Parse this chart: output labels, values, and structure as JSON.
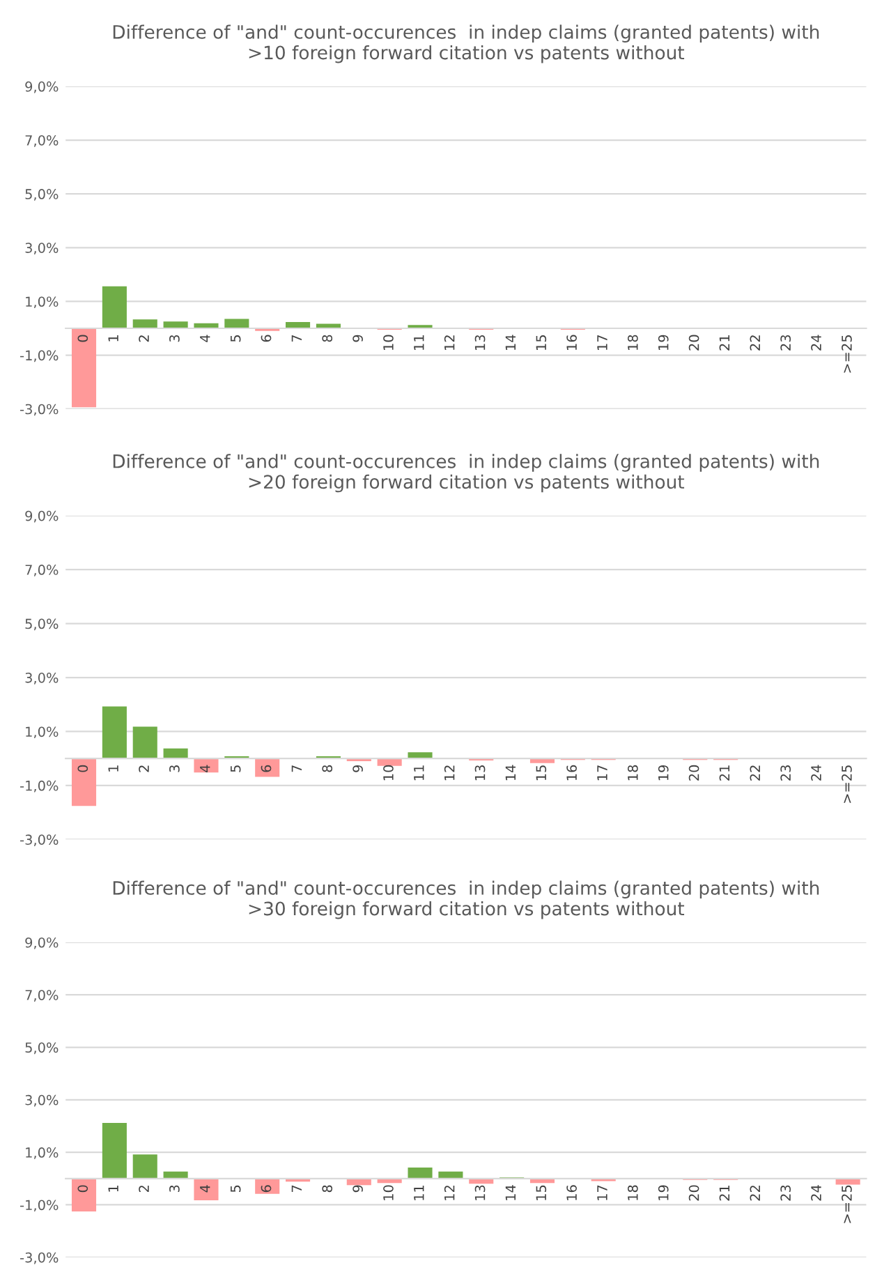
{
  "chart_data": [
    {
      "type": "bar",
      "title": "Difference of \"and\" count-occurences  in indep claims (granted patents) with\n>10 foreign forward citation vs patents without",
      "categories": [
        "0",
        "1",
        "2",
        "3",
        "4",
        "5",
        "6",
        "7",
        "8",
        "9",
        "10",
        "11",
        "12",
        "13",
        "14",
        "15",
        "16",
        "17",
        "18",
        "19",
        "20",
        "21",
        "22",
        "23",
        "24",
        ">=25"
      ],
      "values": [
        -2.94,
        1.56,
        0.33,
        0.25,
        0.19,
        0.35,
        -0.1,
        0.23,
        0.17,
        0,
        -0.05,
        0.12,
        0,
        -0.05,
        0,
        0,
        -0.05,
        0,
        0,
        0,
        0,
        0,
        0,
        0,
        0,
        0
      ],
      "colors": [
        "#ff9999",
        "#70ad47",
        "#70ad47",
        "#70ad47",
        "#70ad47",
        "#70ad47",
        "#ff9999",
        "#70ad47",
        "#70ad47",
        "#70ad47",
        "#ff9999",
        "#70ad47",
        "#70ad47",
        "#ff9999",
        "#70ad47",
        "#70ad47",
        "#ff9999",
        "#70ad47",
        "#70ad47",
        "#70ad47",
        "#70ad47",
        "#70ad47",
        "#70ad47",
        "#70ad47",
        "#70ad47",
        "#70ad47"
      ],
      "ylim": [
        -3,
        9
      ],
      "yticks": [
        {
          "value": -3,
          "label": "-3,0%"
        },
        {
          "value": -1,
          "label": "-1,0%"
        },
        {
          "value": 1,
          "label": "1,0%"
        },
        {
          "value": 3,
          "label": "3,0%"
        },
        {
          "value": 5,
          "label": "5,0%"
        },
        {
          "value": 7,
          "label": "7,0%"
        },
        {
          "value": 9,
          "label": "9,0%"
        }
      ],
      "grid": "y"
    },
    {
      "type": "bar",
      "title": "Difference of \"and\" count-occurences  in indep claims (granted patents) with\n>20 foreign forward citation vs patents without",
      "categories": [
        "0",
        "1",
        "2",
        "3",
        "4",
        "5",
        "6",
        "7",
        "8",
        "9",
        "10",
        "11",
        "12",
        "13",
        "14",
        "15",
        "16",
        "17",
        "18",
        "19",
        "20",
        "21",
        "22",
        "23",
        "24",
        ">=25"
      ],
      "values": [
        -1.76,
        1.93,
        1.18,
        0.37,
        -0.52,
        0.08,
        -0.68,
        0,
        0.08,
        -0.1,
        -0.27,
        0.23,
        0,
        -0.07,
        0,
        -0.17,
        -0.05,
        -0.05,
        0,
        0,
        -0.05,
        -0.05,
        0,
        0,
        0,
        0
      ],
      "colors": [
        "#ff9999",
        "#70ad47",
        "#70ad47",
        "#70ad47",
        "#ff9999",
        "#70ad47",
        "#ff9999",
        "#70ad47",
        "#70ad47",
        "#ff9999",
        "#ff9999",
        "#70ad47",
        "#70ad47",
        "#ff9999",
        "#70ad47",
        "#ff9999",
        "#ff9999",
        "#ff9999",
        "#70ad47",
        "#70ad47",
        "#ff9999",
        "#ff9999",
        "#70ad47",
        "#70ad47",
        "#70ad47",
        "#70ad47"
      ],
      "ylim": [
        -3,
        9
      ],
      "yticks": [
        {
          "value": -3,
          "label": "-3,0%"
        },
        {
          "value": -1,
          "label": "-1,0%"
        },
        {
          "value": 1,
          "label": "1,0%"
        },
        {
          "value": 3,
          "label": "3,0%"
        },
        {
          "value": 5,
          "label": "5,0%"
        },
        {
          "value": 7,
          "label": "7,0%"
        },
        {
          "value": 9,
          "label": "9,0%"
        }
      ],
      "grid": "y"
    },
    {
      "type": "bar",
      "title": "Difference of \"and\" count-occurences  in indep claims (granted patents) with\n>30 foreign forward citation vs patents without",
      "categories": [
        "0",
        "1",
        "2",
        "3",
        "4",
        "5",
        "6",
        "7",
        "8",
        "9",
        "10",
        "11",
        "12",
        "13",
        "14",
        "15",
        "16",
        "17",
        "18",
        "19",
        "20",
        "21",
        "22",
        "23",
        "24",
        ">=25"
      ],
      "values": [
        -1.25,
        2.12,
        0.92,
        0.27,
        -0.83,
        0,
        -0.58,
        -0.12,
        0,
        -0.25,
        -0.17,
        0.42,
        0.27,
        -0.2,
        0.04,
        -0.17,
        0,
        -0.1,
        0,
        0,
        -0.05,
        -0.05,
        0,
        0,
        0,
        -0.23
      ],
      "colors": [
        "#ff9999",
        "#70ad47",
        "#70ad47",
        "#70ad47",
        "#ff9999",
        "#70ad47",
        "#ff9999",
        "#ff9999",
        "#70ad47",
        "#ff9999",
        "#ff9999",
        "#70ad47",
        "#70ad47",
        "#ff9999",
        "#70ad47",
        "#ff9999",
        "#70ad47",
        "#ff9999",
        "#70ad47",
        "#70ad47",
        "#ff9999",
        "#ff9999",
        "#70ad47",
        "#70ad47",
        "#70ad47",
        "#ff9999"
      ],
      "ylim": [
        -3,
        9
      ],
      "yticks": [
        {
          "value": -3,
          "label": "-3,0%"
        },
        {
          "value": -1,
          "label": "-1,0%"
        },
        {
          "value": 1,
          "label": "1,0%"
        },
        {
          "value": 3,
          "label": "3,0%"
        },
        {
          "value": 5,
          "label": "5,0%"
        },
        {
          "value": 7,
          "label": "7,0%"
        },
        {
          "value": 9,
          "label": "9,0%"
        }
      ],
      "grid": "y"
    }
  ]
}
